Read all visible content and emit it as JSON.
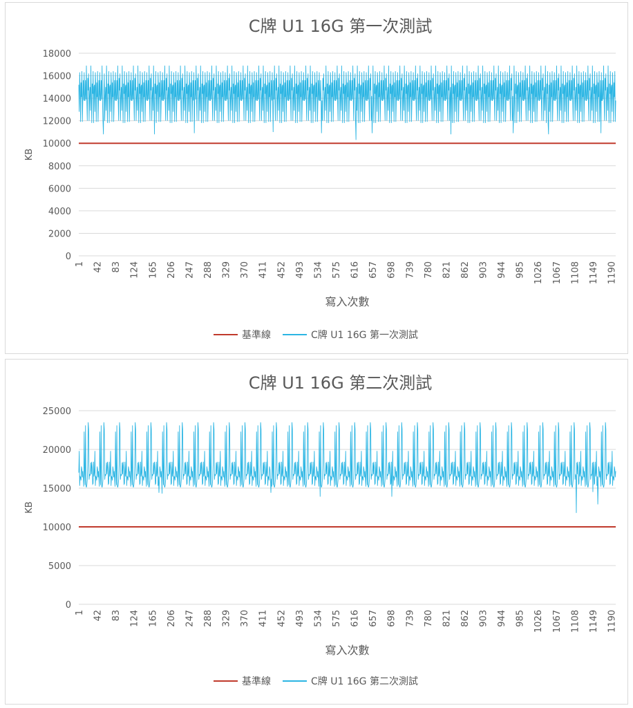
{
  "colors": {
    "baseline": "#c0392b",
    "series": "#2bb5e3",
    "grid": "#d9d9d9",
    "axis_text": "#595959",
    "title_text": "#595959"
  },
  "chart_data": [
    {
      "type": "line",
      "title": "C牌 U1 16G 第一次測試",
      "xlabel": "寫入次數",
      "ylabel": "KB",
      "ylim": [
        0,
        18000
      ],
      "yticks": [
        0,
        2000,
        4000,
        6000,
        8000,
        10000,
        12000,
        14000,
        16000,
        18000
      ],
      "xlim": [
        1,
        1200
      ],
      "xticks": [
        1,
        42,
        83,
        124,
        165,
        206,
        247,
        288,
        329,
        370,
        411,
        452,
        493,
        534,
        575,
        616,
        657,
        698,
        739,
        780,
        821,
        862,
        903,
        944,
        985,
        1026,
        1067,
        1108,
        1149,
        1190
      ],
      "grid": true,
      "legend_position": "bottom",
      "series": [
        {
          "name": "基準線",
          "role": "baseline",
          "value": 10000
        },
        {
          "name": "C牌 U1 16G 第一次測試",
          "role": "measurement",
          "typical_range": [
            13800,
            16400
          ],
          "max_observed": 16900,
          "min_observed": 10300,
          "pattern": [
            15000,
            16400,
            13800,
            15600,
            12000,
            16900,
            14400,
            15200,
            11900,
            16300,
            13900,
            15800,
            14200,
            16400,
            12800,
            15400,
            13800,
            16900,
            14700,
            15000,
            11800,
            16300,
            14100,
            15600,
            13800,
            16200,
            12900,
            15300
          ]
        }
      ],
      "dips": [
        {
          "x": 56,
          "y": 10800
        },
        {
          "x": 170,
          "y": 10800
        },
        {
          "x": 259,
          "y": 10900
        },
        {
          "x": 435,
          "y": 11000
        },
        {
          "x": 543,
          "y": 10900
        },
        {
          "x": 620,
          "y": 10300
        },
        {
          "x": 656,
          "y": 10900
        },
        {
          "x": 832,
          "y": 10800
        },
        {
          "x": 971,
          "y": 10900
        },
        {
          "x": 1050,
          "y": 10800
        },
        {
          "x": 1167,
          "y": 10900
        }
      ]
    },
    {
      "type": "line",
      "title": "C牌 U1 16G 第二次測試",
      "xlabel": "寫入次數",
      "ylabel": "KB",
      "ylim": [
        0,
        25000
      ],
      "yticks": [
        0,
        5000,
        10000,
        15000,
        20000,
        25000
      ],
      "xlim": [
        1,
        1200
      ],
      "xticks": [
        1,
        42,
        83,
        124,
        165,
        206,
        247,
        288,
        329,
        370,
        411,
        452,
        493,
        534,
        575,
        616,
        657,
        698,
        739,
        780,
        821,
        862,
        903,
        944,
        985,
        1026,
        1067,
        1108,
        1149,
        1190
      ],
      "grid": true,
      "legend_position": "bottom",
      "series": [
        {
          "name": "基準線",
          "role": "baseline",
          "value": 10000
        },
        {
          "name": "C牌 U1 16G 第二次測試",
          "role": "measurement",
          "typical_range": [
            15000,
            18500
          ],
          "max_observed": 23600,
          "min_observed": 11800,
          "pattern": [
            16500,
            17400,
            15200,
            23100,
            16100,
            18300,
            15500,
            17000,
            16400,
            22300,
            15300,
            18000,
            16800,
            15600,
            19800,
            16000,
            17200,
            15100,
            23500,
            16600,
            18400,
            15300,
            17800,
            16200,
            15400,
            22600,
            16900,
            17600
          ]
        }
      ],
      "dips": [
        {
          "x": 180,
          "y": 14400
        },
        {
          "x": 187,
          "y": 14300
        },
        {
          "x": 430,
          "y": 14400
        },
        {
          "x": 540,
          "y": 13900
        },
        {
          "x": 700,
          "y": 13900
        },
        {
          "x": 1112,
          "y": 11800
        },
        {
          "x": 1160,
          "y": 12900
        },
        {
          "x": 1149,
          "y": 14500
        }
      ]
    }
  ]
}
